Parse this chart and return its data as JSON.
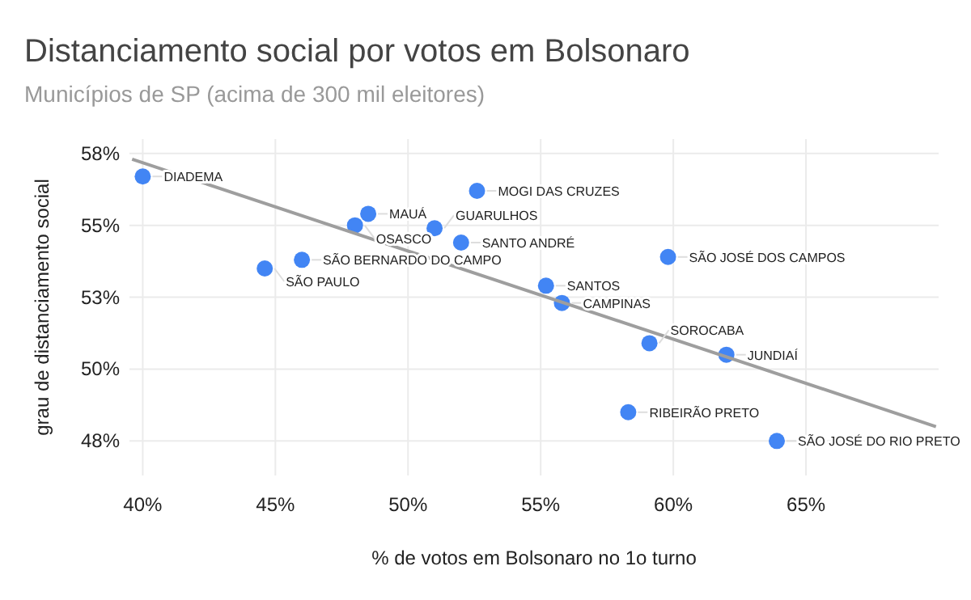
{
  "chart_data": {
    "type": "scatter",
    "title": "Distanciamento social por votos em Bolsonaro",
    "subtitle": "Municípios de SP (acima de 300 mil eleitores)",
    "xlabel": "% de votos em Bolsonaro no 1o turno",
    "ylabel": "grau de distanciamento social",
    "xlim": [
      39.5,
      70
    ],
    "ylim": [
      46.3,
      58.0
    ],
    "xticks": [
      {
        "value": 40,
        "label": "40%"
      },
      {
        "value": 45,
        "label": "45%"
      },
      {
        "value": 50,
        "label": "50%"
      },
      {
        "value": 55,
        "label": "55%"
      },
      {
        "value": 60,
        "label": "60%"
      },
      {
        "value": 65,
        "label": "65%"
      }
    ],
    "yticks": [
      {
        "value": 47.5,
        "label": "48%"
      },
      {
        "value": 50,
        "label": "50%"
      },
      {
        "value": 52.5,
        "label": "53%"
      },
      {
        "value": 55,
        "label": "55%"
      },
      {
        "value": 57.5,
        "label": "58%"
      }
    ],
    "grid": true,
    "marker": "circle",
    "series": [
      {
        "color": "#4285f4",
        "x": [
          40.0,
          44.6,
          46.0,
          48.0,
          48.5,
          51.0,
          52.0,
          52.6,
          55.2,
          55.8,
          59.8,
          59.1,
          62.0,
          58.3,
          63.9
        ],
        "values": [
          56.7,
          53.5,
          53.8,
          55.0,
          55.4,
          54.9,
          54.4,
          56.2,
          52.9,
          52.3,
          53.9,
          50.9,
          50.5,
          48.5,
          47.5
        ]
      },
      {
        "type": "line",
        "color": "#9e9e9e",
        "x": [
          39.6,
          69.9
        ],
        "values": [
          57.3,
          48.0
        ],
        "marker": "none"
      }
    ],
    "annotations": [
      {
        "text": "DIADEMA",
        "x": 40.0,
        "y": 56.7
      },
      {
        "text": "SÃO PAULO",
        "x": 44.6,
        "y": 53.5
      },
      {
        "text": "SÃO BERNARDO DO CAMPO",
        "x": 46.0,
        "y": 53.8
      },
      {
        "text": "OSASCO",
        "x": 48.0,
        "y": 55.0
      },
      {
        "text": "MAUÁ",
        "x": 48.5,
        "y": 55.4
      },
      {
        "text": "GUARULHOS",
        "x": 51.0,
        "y": 54.9
      },
      {
        "text": "SANTO ANDRÉ",
        "x": 52.0,
        "y": 54.4
      },
      {
        "text": "MOGI DAS CRUZES",
        "x": 52.6,
        "y": 56.2
      },
      {
        "text": "SANTOS",
        "x": 55.2,
        "y": 52.9
      },
      {
        "text": "CAMPINAS",
        "x": 55.8,
        "y": 52.3
      },
      {
        "text": "SÃO JOSÉ DOS CAMPOS",
        "x": 59.8,
        "y": 53.9
      },
      {
        "text": "SOROCABA",
        "x": 59.1,
        "y": 50.9
      },
      {
        "text": "JUNDIAÍ",
        "x": 62.0,
        "y": 50.5
      },
      {
        "text": "RIBEIRÃO PRETO",
        "x": 58.3,
        "y": 48.5
      },
      {
        "text": "SÃO JOSÉ DO RIO PRETO",
        "x": 63.9,
        "y": 47.5
      }
    ]
  }
}
